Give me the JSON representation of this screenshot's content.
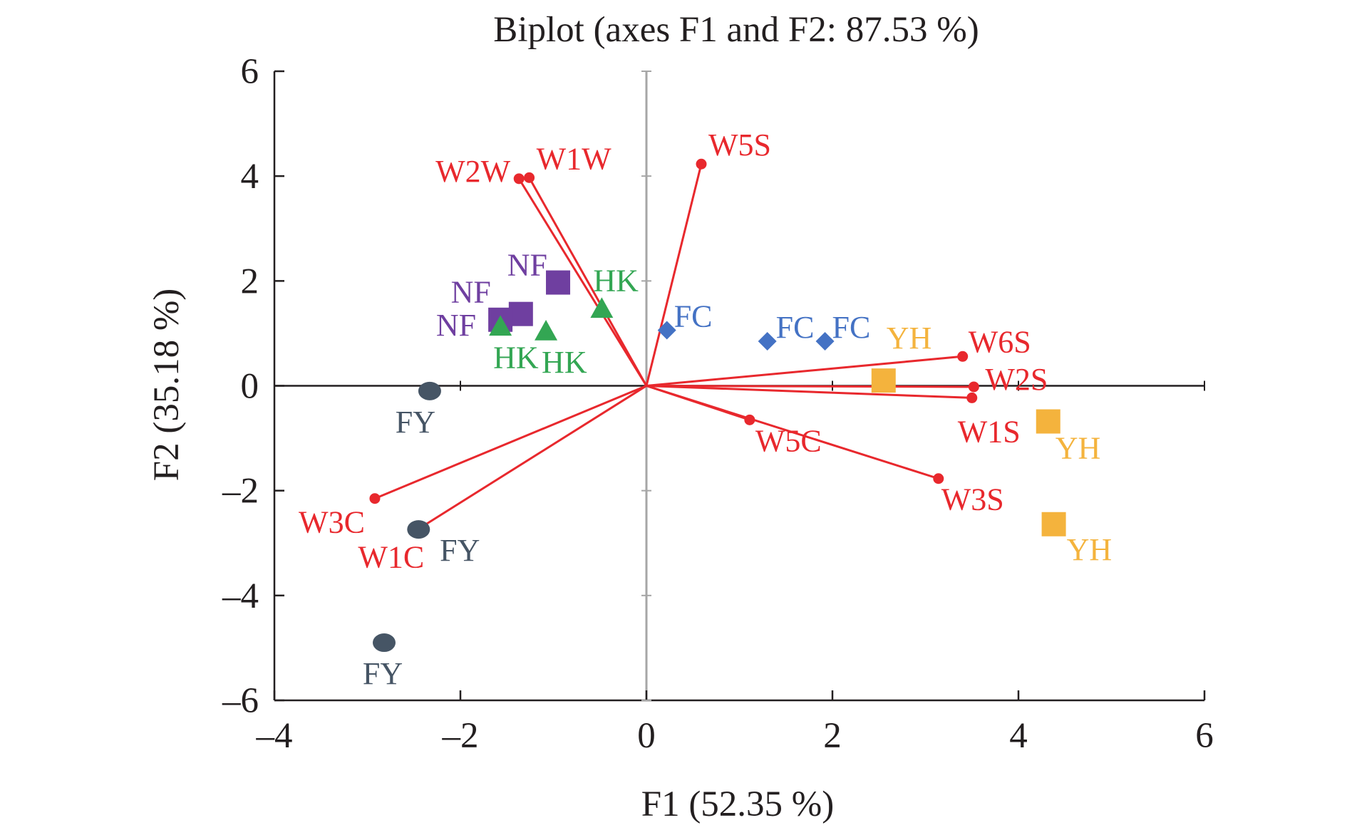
{
  "chart_data": {
    "type": "scatter",
    "title": "Biplot (axes F1 and F2: 87.53 %)",
    "xlabel": "F1 (52.35 %)",
    "ylabel": "F2 (35.18 %)",
    "xlim": [
      -4,
      6
    ],
    "ylim": [
      -6,
      6
    ],
    "xticks": [
      -4,
      -2,
      0,
      2,
      4,
      6
    ],
    "yticks": [
      -6,
      -4,
      -2,
      0,
      2,
      4,
      6
    ],
    "xtick_labels": [
      "–4",
      "–2",
      "0",
      "2",
      "4",
      "6"
    ],
    "ytick_labels": [
      "–6",
      "–4",
      "–2",
      "0",
      "2",
      "4",
      "6"
    ],
    "grid": false,
    "series": [
      {
        "kind": "observations",
        "marker": "square",
        "color": "#6f3fa0",
        "points": [
          {
            "x": -0.95,
            "y": 1.97,
            "label": "NF"
          },
          {
            "x": -1.35,
            "y": 1.37,
            "label": "NF"
          },
          {
            "x": -1.57,
            "y": 1.26,
            "label": "NF"
          }
        ]
      },
      {
        "kind": "observations",
        "marker": "triangle",
        "color": "#33a653",
        "points": [
          {
            "x": -0.48,
            "y": 1.47,
            "label": "HK"
          },
          {
            "x": -1.57,
            "y": 1.13,
            "label": "HK"
          },
          {
            "x": -1.08,
            "y": 1.04,
            "label": "HK"
          }
        ]
      },
      {
        "kind": "observations",
        "marker": "diamond",
        "color": "#4472c4",
        "points": [
          {
            "x": 0.22,
            "y": 1.06,
            "label": "FC"
          },
          {
            "x": 1.3,
            "y": 0.85,
            "label": "FC"
          },
          {
            "x": 1.92,
            "y": 0.85,
            "label": "FC"
          }
        ]
      },
      {
        "kind": "observations",
        "marker": "square",
        "color": "#f4b33d",
        "points": [
          {
            "x": 2.55,
            "y": 0.1,
            "label": "YH"
          },
          {
            "x": 4.32,
            "y": -0.68,
            "label": "YH"
          },
          {
            "x": 4.38,
            "y": -2.64,
            "label": "YH"
          }
        ]
      },
      {
        "kind": "observations",
        "marker": "ellipse",
        "color": "#465565",
        "points": [
          {
            "x": -2.33,
            "y": -0.1,
            "label": "FY"
          },
          {
            "x": -2.45,
            "y": -2.74,
            "label": "FY"
          },
          {
            "x": -2.82,
            "y": -4.9,
            "label": "FY"
          }
        ]
      },
      {
        "kind": "variables",
        "marker": "vector",
        "color": "#e8282d",
        "points": [
          {
            "x": -1.26,
            "y": 3.97,
            "label": "W1W"
          },
          {
            "x": -1.37,
            "y": 3.95,
            "label": "W2W"
          },
          {
            "x": 0.59,
            "y": 4.23,
            "label": "W5S"
          },
          {
            "x": 3.4,
            "y": 0.56,
            "label": "W6S"
          },
          {
            "x": 3.52,
            "y": -0.02,
            "label": "W2S"
          },
          {
            "x": 3.5,
            "y": -0.23,
            "label": "W1S"
          },
          {
            "x": 1.11,
            "y": -0.65,
            "label": "W5C"
          },
          {
            "x": 3.14,
            "y": -1.77,
            "label": "W3S"
          },
          {
            "x": -2.92,
            "y": -2.15,
            "label": "W3C"
          },
          {
            "x": -2.45,
            "y": -2.73,
            "label": "W1C"
          }
        ]
      }
    ]
  }
}
